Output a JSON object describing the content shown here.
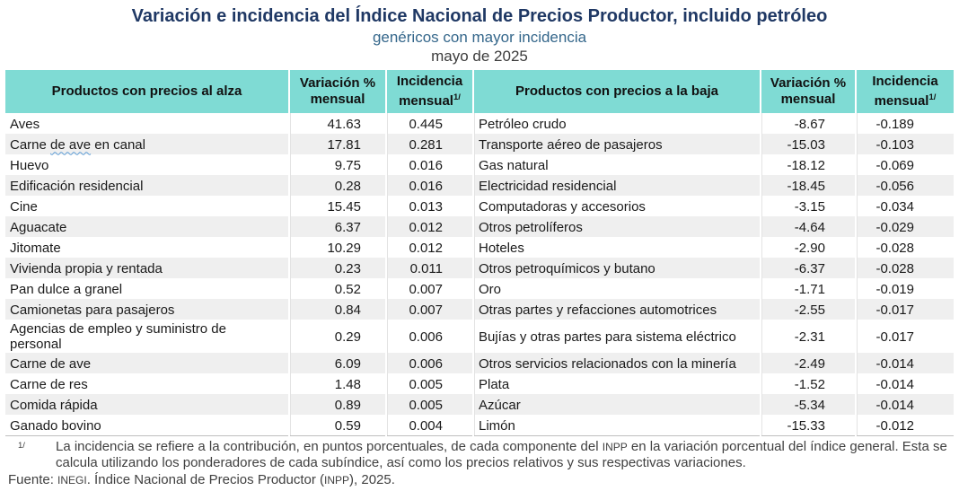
{
  "header": {
    "title": "Variación e incidencia del Índice Nacional de Precios Productor, incluido petróleo",
    "subtitle": "genéricos con mayor incidencia",
    "period": "mayo de 2025"
  },
  "table": {
    "columns": {
      "alza_label": "Productos con precios al alza",
      "variacion_label": "Variación % mensual",
      "incidencia_label": "Incidencia mensual",
      "footnote_mark": "1/",
      "baja_label": "Productos con precios a la baja"
    },
    "rows": [
      {
        "alza": "Aves",
        "alza_var": "41.63",
        "alza_inc": "0.445",
        "baja": "Petróleo crudo",
        "baja_var": "-8.67",
        "baja_inc": "-0.189"
      },
      {
        "alza": "Carne de ave en canal",
        "alza_squiggle": "de ave",
        "alza_var": "17.81",
        "alza_inc": "0.281",
        "baja": "Transporte aéreo de pasajeros",
        "baja_var": "-15.03",
        "baja_inc": "-0.103"
      },
      {
        "alza": "Huevo",
        "alza_var": "9.75",
        "alza_inc": "0.016",
        "baja": "Gas natural",
        "baja_var": "-18.12",
        "baja_inc": "-0.069"
      },
      {
        "alza": "Edificación residencial",
        "alza_var": "0.28",
        "alza_inc": "0.016",
        "baja": "Electricidad residencial",
        "baja_var": "-18.45",
        "baja_inc": "-0.056"
      },
      {
        "alza": "Cine",
        "alza_var": "15.45",
        "alza_inc": "0.013",
        "baja": "Computadoras y accesorios",
        "baja_var": "-3.15",
        "baja_inc": "-0.034"
      },
      {
        "alza": "Aguacate",
        "alza_var": "6.37",
        "alza_inc": "0.012",
        "baja": "Otros petrolíferos",
        "baja_var": "-4.64",
        "baja_inc": "-0.029"
      },
      {
        "alza": "Jitomate",
        "alza_var": "10.29",
        "alza_inc": "0.012",
        "baja": "Hoteles",
        "baja_var": "-2.90",
        "baja_inc": "-0.028"
      },
      {
        "alza": "Vivienda propia y rentada",
        "alza_var": "0.23",
        "alza_inc": "0.011",
        "baja": "Otros petroquímicos y butano",
        "baja_var": "-6.37",
        "baja_inc": "-0.028"
      },
      {
        "alza": "Pan dulce a granel",
        "alza_var": "0.52",
        "alza_inc": "0.007",
        "baja": "Oro",
        "baja_var": "-1.71",
        "baja_inc": "-0.019"
      },
      {
        "alza": "Camionetas para pasajeros",
        "alza_var": "0.84",
        "alza_inc": "0.007",
        "baja": "Otras partes y refacciones automotrices",
        "baja_var": "-2.55",
        "baja_inc": "-0.017"
      },
      {
        "alza": "Agencias de empleo y suministro de personal",
        "alza_var": "0.29",
        "alza_inc": "0.006",
        "baja": "Bujías y otras partes para sistema eléctrico",
        "baja_var": "-2.31",
        "baja_inc": "-0.017"
      },
      {
        "alza": "Carne de ave",
        "alza_var": "6.09",
        "alza_inc": "0.006",
        "baja": "Otros servicios relacionados con la minería",
        "baja_var": "-2.49",
        "baja_inc": "-0.014"
      },
      {
        "alza": "Carne de res",
        "alza_var": "1.48",
        "alza_inc": "0.005",
        "baja": "Plata",
        "baja_var": "-1.52",
        "baja_inc": "-0.014"
      },
      {
        "alza": "Comida rápida",
        "alza_var": "0.89",
        "alza_inc": "0.005",
        "baja": "Azúcar",
        "baja_var": "-5.34",
        "baja_inc": "-0.014"
      },
      {
        "alza": "Ganado bovino",
        "alza_var": "0.59",
        "alza_inc": "0.004",
        "baja": "Limón",
        "baja_var": "-15.33",
        "baja_inc": "-0.012"
      }
    ]
  },
  "footnotes": {
    "mark": "1/",
    "note": "La incidencia se refiere a la contribución, en puntos porcentuales, de cada componente del INPP en la variación porcentual del índice general. Esta se calcula utilizando los ponderadores de cada subíndice, así como los precios relativos y sus respectivas variaciones.",
    "fuente": "Fuente: INEGI. Índice Nacional de Precios Productor (INPP), 2025."
  },
  "colors": {
    "header_bg": "#7FDBD4",
    "title_text": "#1F3864",
    "subtitle_text": "#35678B",
    "row_alt_bg": "#EFEFEF",
    "table_bottom_border": "#BFBFBF",
    "note_text": "#404040"
  }
}
